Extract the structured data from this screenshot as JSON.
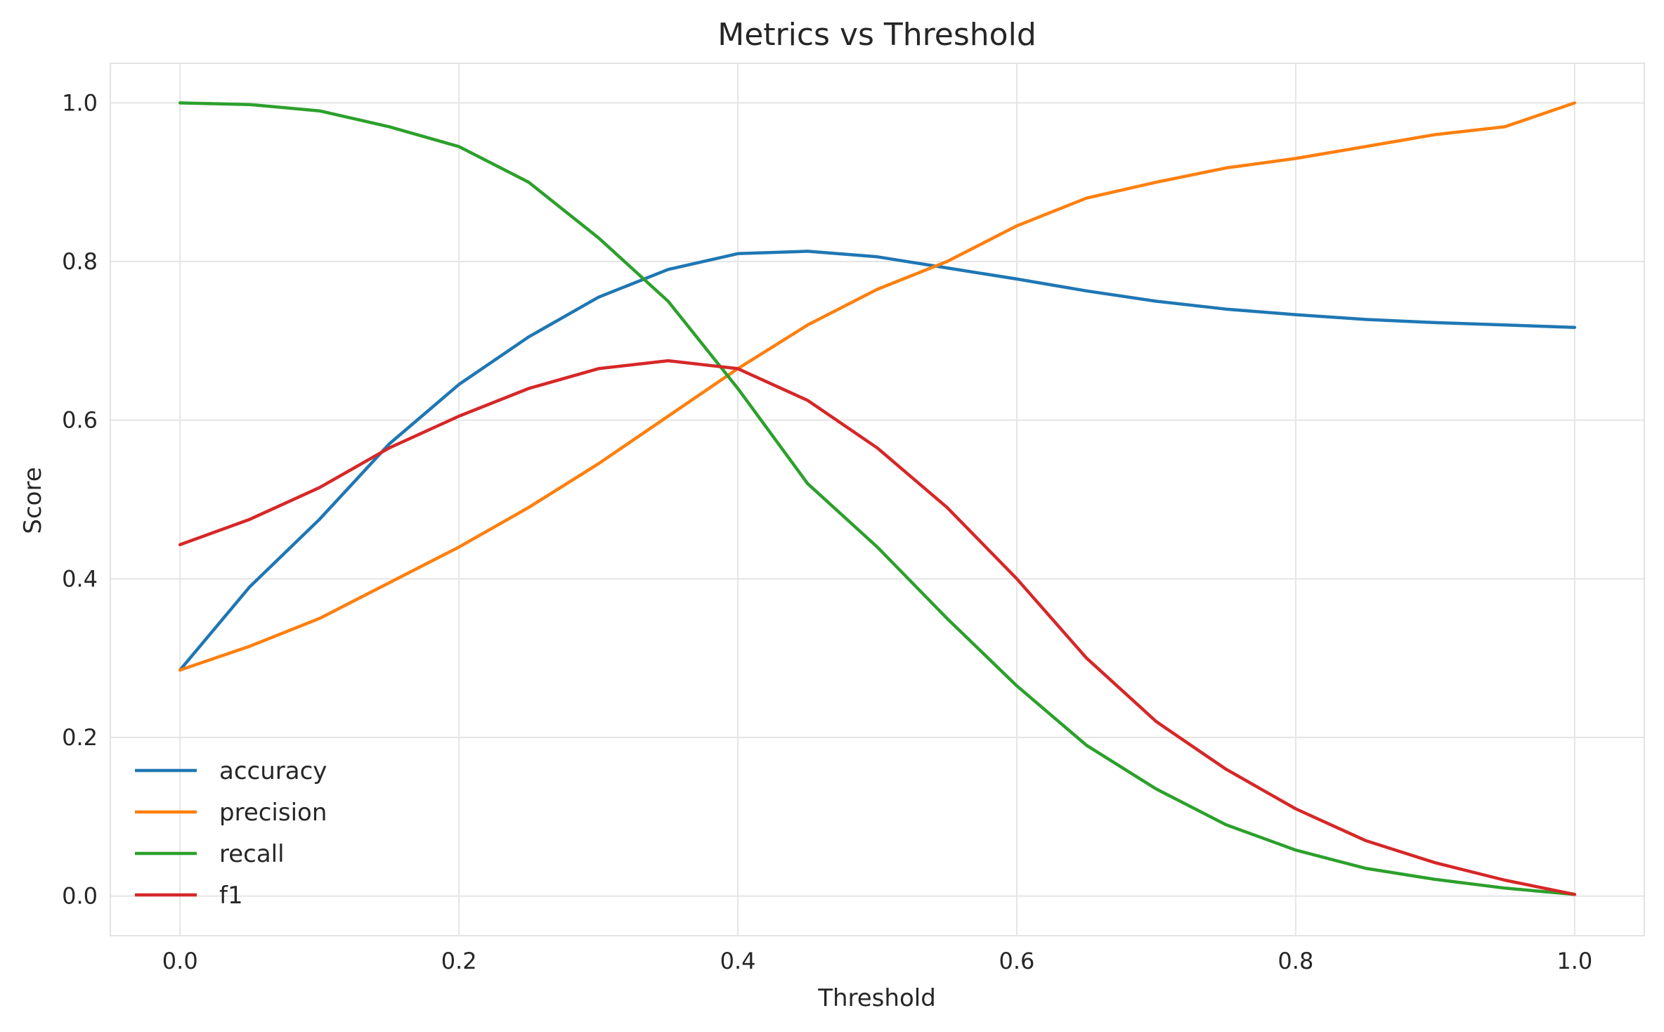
{
  "chart_data": {
    "type": "line",
    "title": "Metrics vs Threshold",
    "xlabel": "Threshold",
    "ylabel": "Score",
    "xlim": [
      -0.05,
      1.05
    ],
    "ylim": [
      -0.05,
      1.05
    ],
    "xticks": [
      "0.0",
      "0.2",
      "0.4",
      "0.6",
      "0.8",
      "1.0"
    ],
    "xtick_values": [
      0.0,
      0.2,
      0.4,
      0.6,
      0.8,
      1.0
    ],
    "yticks": [
      "0.0",
      "0.2",
      "0.4",
      "0.6",
      "0.8",
      "1.0"
    ],
    "ytick_values": [
      0.0,
      0.2,
      0.4,
      0.6,
      0.8,
      1.0
    ],
    "grid": true,
    "legend_position": "lower-left",
    "x": [
      0.0,
      0.05,
      0.1,
      0.15,
      0.2,
      0.25,
      0.3,
      0.35,
      0.4,
      0.45,
      0.5,
      0.55,
      0.6,
      0.65,
      0.7,
      0.75,
      0.8,
      0.85,
      0.9,
      0.95,
      1.0
    ],
    "series": [
      {
        "name": "accuracy",
        "color": "#1f77b4",
        "values": [
          0.285,
          0.39,
          0.475,
          0.57,
          0.645,
          0.705,
          0.755,
          0.79,
          0.81,
          0.813,
          0.806,
          0.792,
          0.778,
          0.763,
          0.75,
          0.74,
          0.733,
          0.727,
          0.723,
          0.72,
          0.717
        ]
      },
      {
        "name": "precision",
        "color": "#ff7f0e",
        "values": [
          0.285,
          0.315,
          0.35,
          0.395,
          0.44,
          0.49,
          0.545,
          0.605,
          0.665,
          0.72,
          0.765,
          0.8,
          0.845,
          0.88,
          0.9,
          0.918,
          0.93,
          0.945,
          0.96,
          0.97,
          1.0
        ]
      },
      {
        "name": "recall",
        "color": "#2ca02c",
        "values": [
          1.0,
          0.998,
          0.99,
          0.97,
          0.945,
          0.9,
          0.83,
          0.75,
          0.64,
          0.52,
          0.44,
          0.35,
          0.265,
          0.19,
          0.135,
          0.09,
          0.058,
          0.035,
          0.021,
          0.01,
          0.002
        ]
      },
      {
        "name": "f1",
        "color": "#d62728",
        "values": [
          0.443,
          0.475,
          0.515,
          0.565,
          0.605,
          0.64,
          0.665,
          0.675,
          0.665,
          0.625,
          0.565,
          0.49,
          0.4,
          0.3,
          0.22,
          0.16,
          0.11,
          0.07,
          0.042,
          0.02,
          0.002
        ]
      }
    ]
  }
}
